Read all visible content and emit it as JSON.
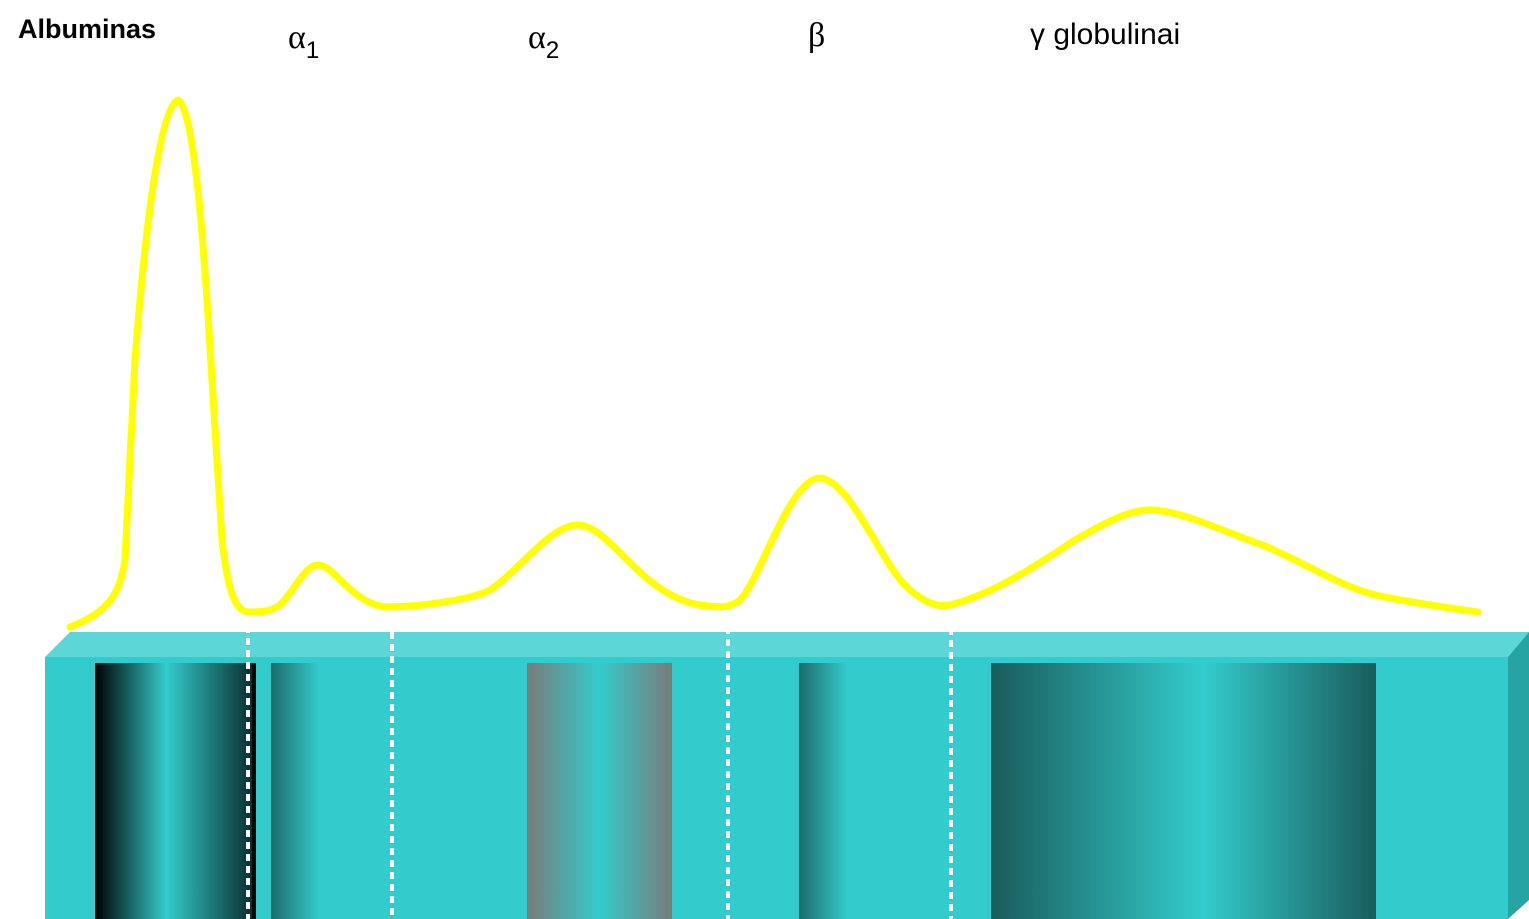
{
  "labels": [
    {
      "text": "Albuminas"
    },
    {
      "symbol": "α",
      "subscript": "1"
    },
    {
      "symbol": "α",
      "subscript": "2"
    },
    {
      "symbol": "β"
    },
    {
      "text": "γ globulinai"
    }
  ]
}
